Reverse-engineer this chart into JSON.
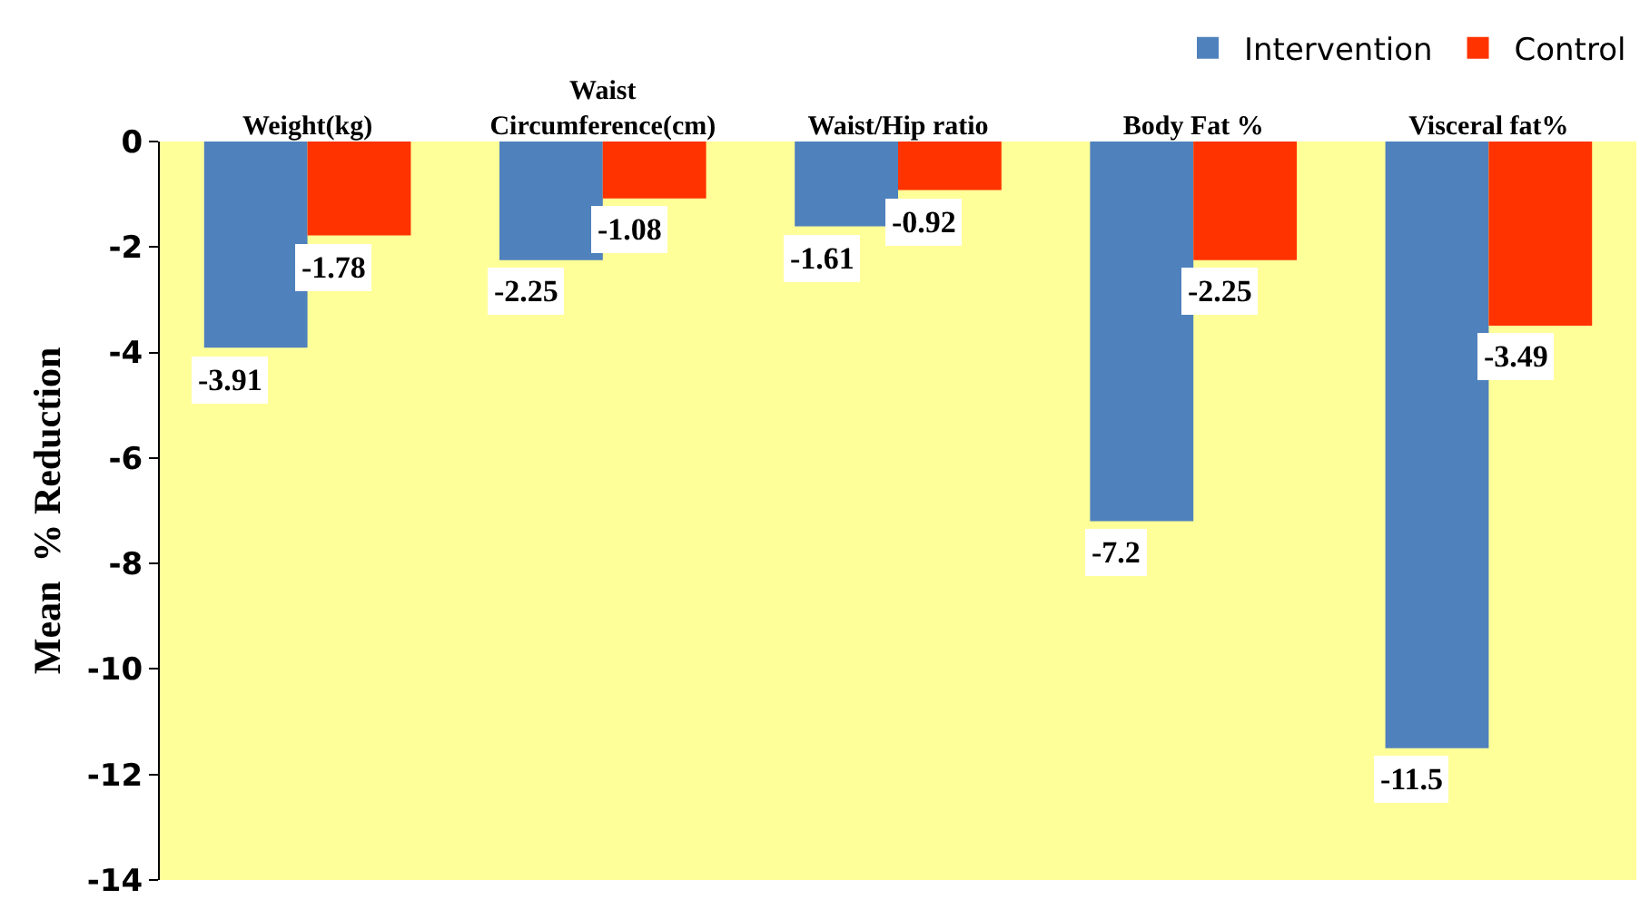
{
  "chart_data": {
    "type": "bar",
    "ylabel": "Mean  % Reduction",
    "categories": [
      "Weight(kg)",
      "Waist\nCircumference(cm)",
      "Waist/Hip ratio",
      "Body Fat %",
      "Visceral fat%"
    ],
    "series": [
      {
        "name": "Intervention",
        "color": "#4f81bd",
        "values": [
          -3.91,
          -2.25,
          -1.61,
          -7.2,
          -11.5
        ]
      },
      {
        "name": "Control",
        "color": "#ff3300",
        "values": [
          -1.78,
          -1.08,
          -0.92,
          -2.25,
          -3.49
        ]
      }
    ],
    "ylim": [
      -14,
      0
    ],
    "yticks": [
      -14,
      -12,
      -10,
      -8,
      -6,
      -4,
      -2,
      0
    ],
    "grid": false,
    "legend": "top right",
    "data_labels": true
  }
}
